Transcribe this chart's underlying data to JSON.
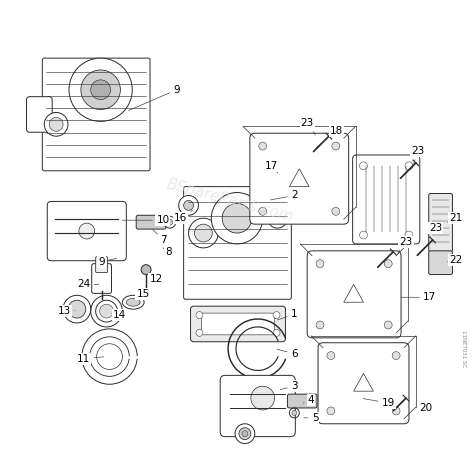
{
  "bg_color": "#ffffff",
  "line_color": "#2a2a2a",
  "label_color": "#000000",
  "watermark": "11NET031 SC",
  "wm_text": "BSpareParts.com",
  "figsize": [
    4.74,
    4.74
  ],
  "dpi": 100
}
